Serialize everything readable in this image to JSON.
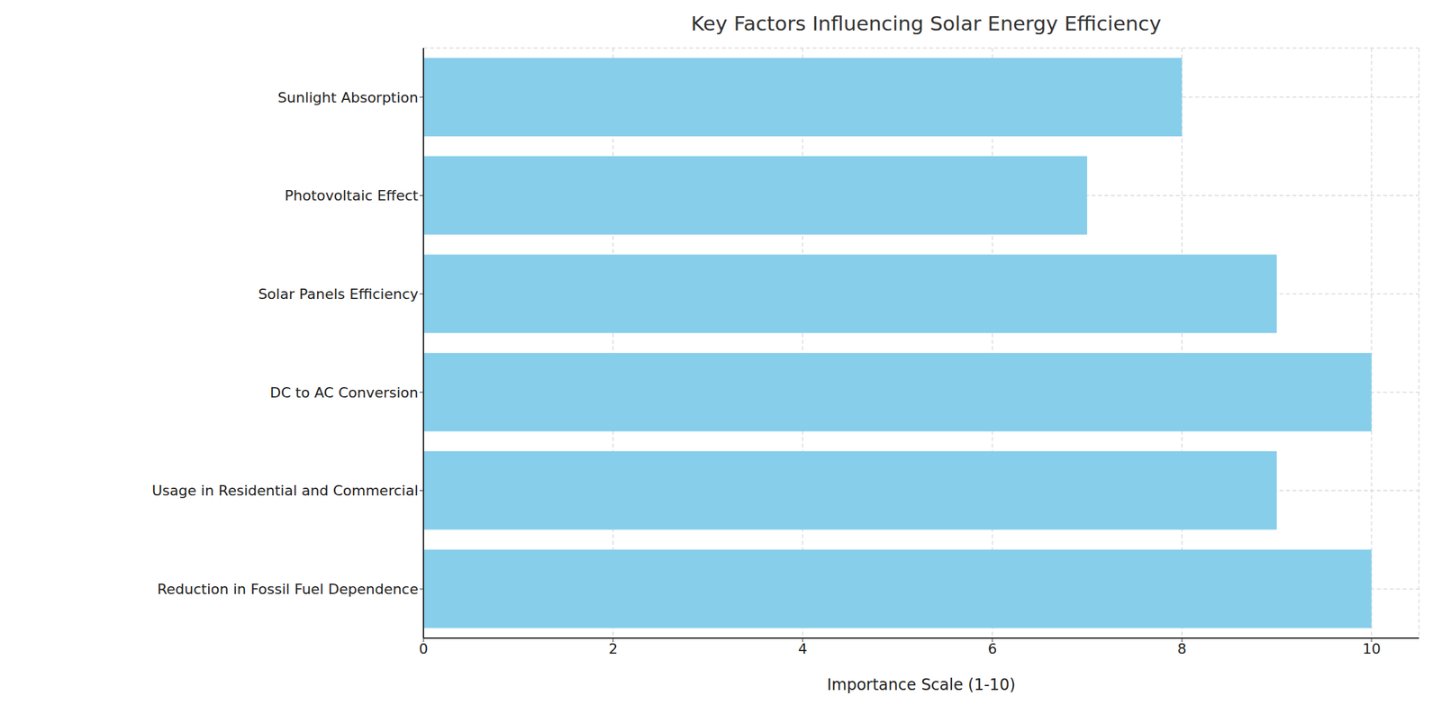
{
  "chart_data": {
    "type": "bar",
    "title": "Key Factors Influencing Solar Energy Efficiency",
    "orientation": "horizontal",
    "categories": [
      "Sunlight Absorption",
      "Photovoltaic Effect",
      "Solar Panels Efficiency",
      "DC to AC Conversion",
      "Usage in Residential and Commercial",
      "Reduction in Fossil Fuel Dependence"
    ],
    "values": [
      8,
      7,
      9,
      10,
      9,
      10
    ],
    "color": "#87ceeb",
    "x_label": "Importance Scale (1-10)",
    "xlim": [
      0,
      10.5
    ],
    "xticks": [
      0,
      2,
      4,
      6,
      8,
      10
    ],
    "grid": true
  }
}
